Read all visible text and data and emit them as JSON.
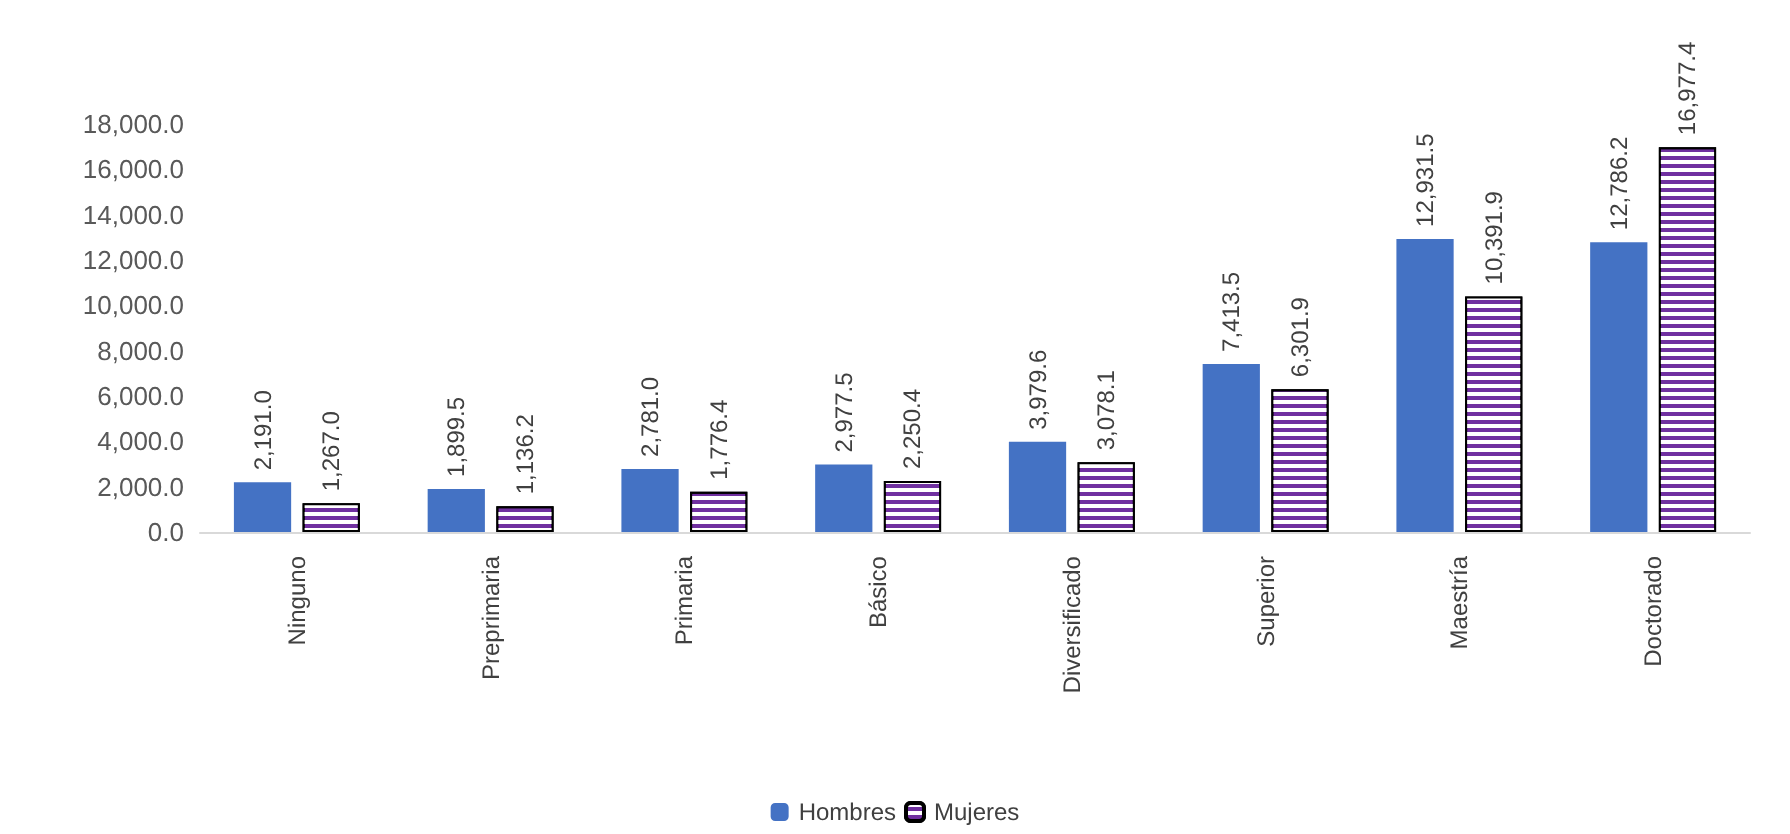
{
  "chart_data": {
    "type": "bar",
    "categories": [
      "Ninguno",
      "Preprimaria",
      "Primaria",
      "Básico",
      "Diversificado",
      "Superior",
      "Maestría",
      "Doctorado"
    ],
    "series": [
      {
        "name": "Hombres",
        "color": "#4472c4",
        "values": [
          2191.0,
          1899.5,
          2781.0,
          2977.5,
          3979.6,
          7413.5,
          12931.5,
          12786.2
        ],
        "value_labels": [
          "2,191.0",
          "1,899.5",
          "2,781.0",
          "2,977.5",
          "3,979.6",
          "7,413.5",
          "12,931.5",
          "12,786.2"
        ]
      },
      {
        "name": "Mujeres",
        "color": "#7030a0",
        "values": [
          1267.0,
          1136.2,
          1776.4,
          2250.4,
          3078.1,
          6301.9,
          10391.9,
          16977.4
        ],
        "value_labels": [
          "1,267.0",
          "1,136.2",
          "1,776.4",
          "2,250.4",
          "3,078.1",
          "6,301.9",
          "10,391.9",
          "16,977.4"
        ]
      }
    ],
    "ylim": [
      0,
      18000
    ],
    "yticks": [
      {
        "value": 0,
        "label": "0.0"
      },
      {
        "value": 2000,
        "label": "2,000.0"
      },
      {
        "value": 4000,
        "label": "4,000.0"
      },
      {
        "value": 6000,
        "label": "6,000.0"
      },
      {
        "value": 8000,
        "label": "8,000.0"
      },
      {
        "value": 10000,
        "label": "10,000.0"
      },
      {
        "value": 12000,
        "label": "12,000.0"
      },
      {
        "value": 14000,
        "label": "14,000.0"
      },
      {
        "value": 16000,
        "label": "16,000.0"
      },
      {
        "value": 18000,
        "label": "18,000.0"
      }
    ],
    "grid": false,
    "legend": "bottom"
  }
}
